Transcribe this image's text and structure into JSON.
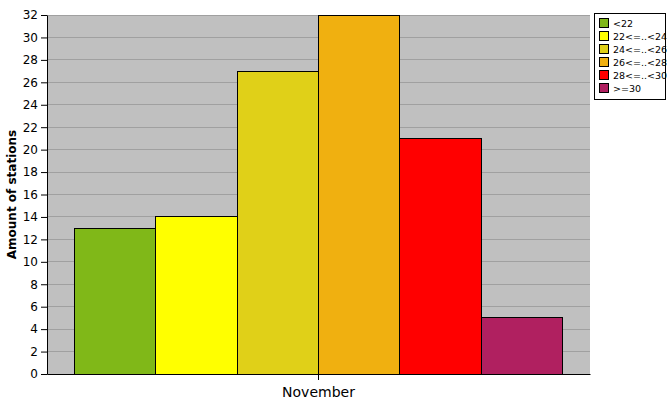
{
  "chart_data": {
    "type": "bar",
    "ylabel": "Amount of stations",
    "categories": [
      "November"
    ],
    "series": [
      {
        "name": "<22",
        "color": "#80b818",
        "values": [
          13
        ]
      },
      {
        "name": "22<=..<24",
        "color": "#ffff00",
        "values": [
          14
        ]
      },
      {
        "name": "24<=..<26",
        "color": "#e0d018",
        "values": [
          27
        ]
      },
      {
        "name": "26<=..<28",
        "color": "#f0b010",
        "values": [
          32
        ]
      },
      {
        "name": "28<=..<30",
        "color": "#ff0000",
        "values": [
          21
        ]
      },
      {
        "name": ">=30",
        "color": "#b02060",
        "values": [
          5
        ]
      }
    ],
    "ylim": [
      0,
      32
    ],
    "yticks": [
      0,
      2,
      4,
      6,
      8,
      10,
      12,
      14,
      16,
      18,
      20,
      22,
      24,
      26,
      28,
      30,
      32
    ],
    "grid": true,
    "legend": "top-right"
  }
}
